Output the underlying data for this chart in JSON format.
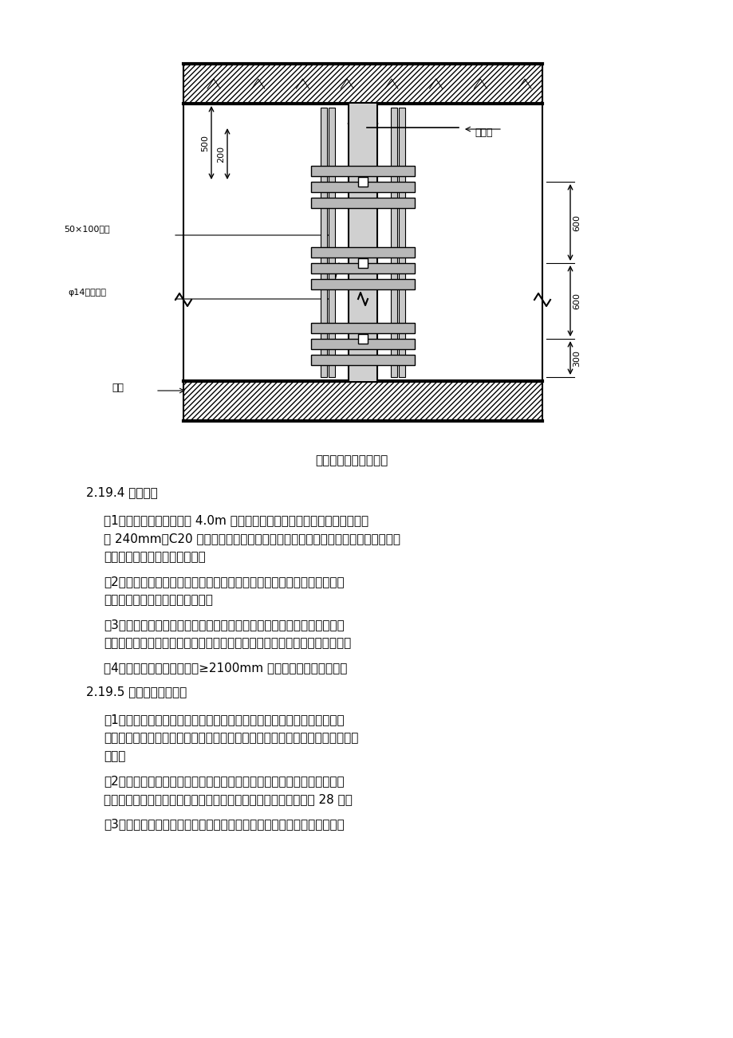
{
  "bg_color": "#ffffff",
  "text_color": "#000000",
  "diagram_caption": "构造柱模板加固示意图",
  "section_title1": "2.19.4 构造节点",
  "para1": "（1）非承重墙，墙高大于 4.0m 时，在墙体半高处设置通长水平圈梁，圈梁\n高 240mm，C20 混凝土。有门洞时水平系梁与门过梁结合，置于门洞上部，圈梁\n钢筋按圈梁与过梁较大筋配置。",
  "para2": "（2）凡紧靠柱边的预留洞和门窗洞，在浇筑柱混凝土时，应预留过梁连接\n筋，连接筋的直径与过梁筋相同。",
  "para3": "（3）所有结构洞在主体施工完成后，用砌块墙体封堵，两侧加钢板网抹水\n泥砂浆，钢板网与洞口四边混凝土墙应有可靠连接，以避免装饰面出现裂缝。",
  "para4": "（4）砌体填充墙上所有宽度≥2100mm 的门洞两边均设构造柱。",
  "section_title2": "2.19.5 砌筑施工注意事项",
  "para5": "（1）砌块排列尽量按大规格砌块，从门洞边开始排块，利用小规格砌块错\n缝（小于辅块尺寸时可切割砌块），门窗洞口旁上下孔基本对齐，便于芯孔灌混\n凝土。",
  "para6": "（2）轻集料混凝土砌块的品种、规格、强度应符合设计要求，材料有出厂\n合格证、检测报告、试验报告。轻集料混凝土砌块的龄期不应少于 28 天。",
  "para7": "（3）砌块在运输、装卸过程中，严禁抛掷和倾倒，进场后按照品种、规格"
}
